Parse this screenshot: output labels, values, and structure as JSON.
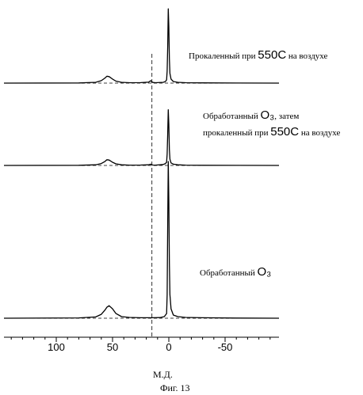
{
  "figure_caption": "Фиг. 13",
  "chart_data": {
    "type": "line",
    "xlabel": "М.Д.",
    "x_reversed": true,
    "xlim": [
      150,
      -100
    ],
    "xticks": [
      100,
      50,
      0,
      -50
    ],
    "reference_line_x": 15,
    "series": [
      {
        "annotation": {
          "pre": "Прокаленный при ",
          "big": "550C",
          "post": " на воздухе"
        },
        "x": [
          150,
          80,
          65,
          60,
          57,
          55,
          53,
          50,
          47,
          42,
          35,
          25,
          18,
          16,
          15,
          14,
          12,
          5,
          3,
          2,
          1.5,
          1,
          0.5,
          0,
          -0.5,
          -1,
          -2,
          -4,
          -8,
          -15,
          -30,
          -60,
          -100
        ],
        "y": [
          0,
          0.2,
          1,
          3,
          6,
          8.5,
          8,
          5,
          2.5,
          1,
          0.5,
          0.6,
          1.2,
          3,
          1.5,
          0.8,
          0.5,
          1,
          2,
          4,
          15,
          45,
          92,
          70,
          30,
          12,
          5,
          2,
          1,
          0.5,
          0.3,
          0.1,
          0
        ]
      },
      {
        "annotation": {
          "pre": "Обработанный ",
          "big": "O₃",
          "post": ", затем",
          "line2_pre": "прокаленный при ",
          "line2_big": "550C",
          "line2_post": " на воздухе"
        },
        "x": [
          150,
          80,
          65,
          60,
          57,
          55,
          53,
          50,
          47,
          42,
          35,
          25,
          18,
          16,
          15,
          14,
          12,
          5,
          3,
          2,
          1.5,
          1,
          0.5,
          0,
          -0.5,
          -1,
          -2,
          -4,
          -8,
          -15,
          -30,
          -60,
          -100
        ],
        "y": [
          0,
          0.2,
          1,
          3,
          6,
          9,
          8.5,
          5,
          2.5,
          1,
          0.5,
          0.6,
          1,
          2,
          1,
          0.6,
          0.5,
          1.5,
          3,
          5,
          18,
          50,
          88,
          65,
          25,
          10,
          4,
          2,
          1,
          0.5,
          0.3,
          0.1,
          0
        ]
      },
      {
        "annotation": {
          "pre": "Обработанный ",
          "big": "O₃",
          "post": ""
        },
        "x": [
          150,
          80,
          65,
          60,
          57,
          55,
          53,
          50,
          47,
          42,
          35,
          25,
          15,
          8,
          4,
          2,
          1.5,
          1,
          0.5,
          0,
          -0.5,
          -1,
          -2,
          -4,
          -8,
          -15,
          -30,
          -60,
          -100
        ],
        "y": [
          0,
          0.2,
          0.8,
          2.5,
          5,
          7,
          8,
          6,
          3,
          1,
          0.5,
          0.3,
          0.3,
          0.4,
          1,
          3,
          15,
          60,
          100,
          75,
          35,
          15,
          6,
          2,
          1,
          0.5,
          0.3,
          0.1,
          0
        ]
      }
    ]
  }
}
